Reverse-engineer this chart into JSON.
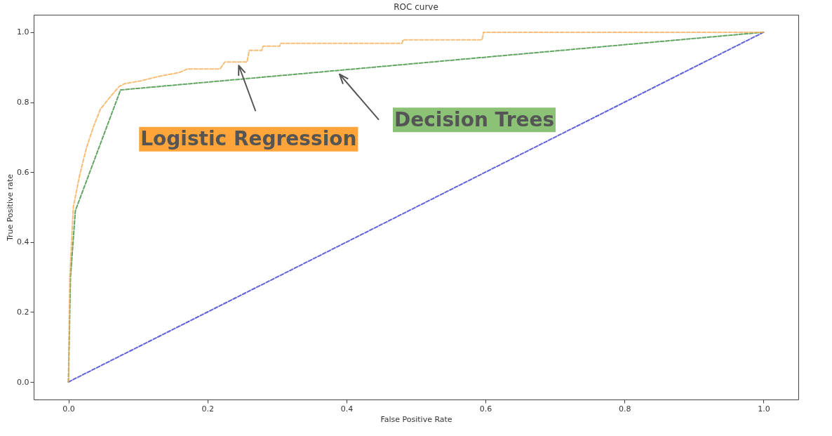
{
  "chart_data": {
    "type": "line",
    "title": "ROC curve",
    "xlabel": "False Positive Rate",
    "ylabel": "True Positive rate",
    "xlim": [
      -0.05,
      1.05
    ],
    "ylim": [
      -0.05,
      1.05
    ],
    "xticks": [
      {
        "value": 0,
        "label": "0.0"
      },
      {
        "value": 0.2,
        "label": "0.2"
      },
      {
        "value": 0.4,
        "label": "0.4"
      },
      {
        "value": 0.6,
        "label": "0.6"
      },
      {
        "value": 0.8,
        "label": "0.8"
      },
      {
        "value": 1,
        "label": "1.0"
      }
    ],
    "yticks": [
      {
        "value": 0,
        "label": "0.0"
      },
      {
        "value": 0.2,
        "label": "0.2"
      },
      {
        "value": 0.4,
        "label": "0.4"
      },
      {
        "value": 0.6,
        "label": "0.6"
      },
      {
        "value": 0.8,
        "label": "0.8"
      },
      {
        "value": 1,
        "label": "1.0"
      }
    ],
    "grid": false,
    "line_style": "dashed",
    "series": [
      {
        "color": "#3b3bd0",
        "x": [
          0,
          1
        ],
        "values": [
          0,
          1
        ]
      },
      {
        "color": "#f5ad55",
        "x": [
          0,
          0.002,
          0.007,
          0.016,
          0.026,
          0.036,
          0.046,
          0.06,
          0.073,
          0.081,
          0.104,
          0.133,
          0.16,
          0.171,
          0.218,
          0.225,
          0.257,
          0.26,
          0.278,
          0.28,
          0.304,
          0.305,
          0.48,
          0.481,
          0.595,
          0.597,
          1
        ],
        "values": [
          0,
          0.3,
          0.5,
          0.59,
          0.67,
          0.73,
          0.78,
          0.815,
          0.845,
          0.853,
          0.861,
          0.875,
          0.885,
          0.895,
          0.895,
          0.915,
          0.915,
          0.948,
          0.948,
          0.96,
          0.96,
          0.968,
          0.968,
          0.978,
          0.978,
          1,
          1
        ]
      },
      {
        "color": "#3a8f3a",
        "x": [
          0,
          0.003,
          0.01,
          0.075,
          1
        ],
        "values": [
          0,
          0.3,
          0.49,
          0.835,
          1
        ]
      }
    ],
    "annotations": [
      "Logistic Regression",
      "Decision Trees"
    ]
  }
}
